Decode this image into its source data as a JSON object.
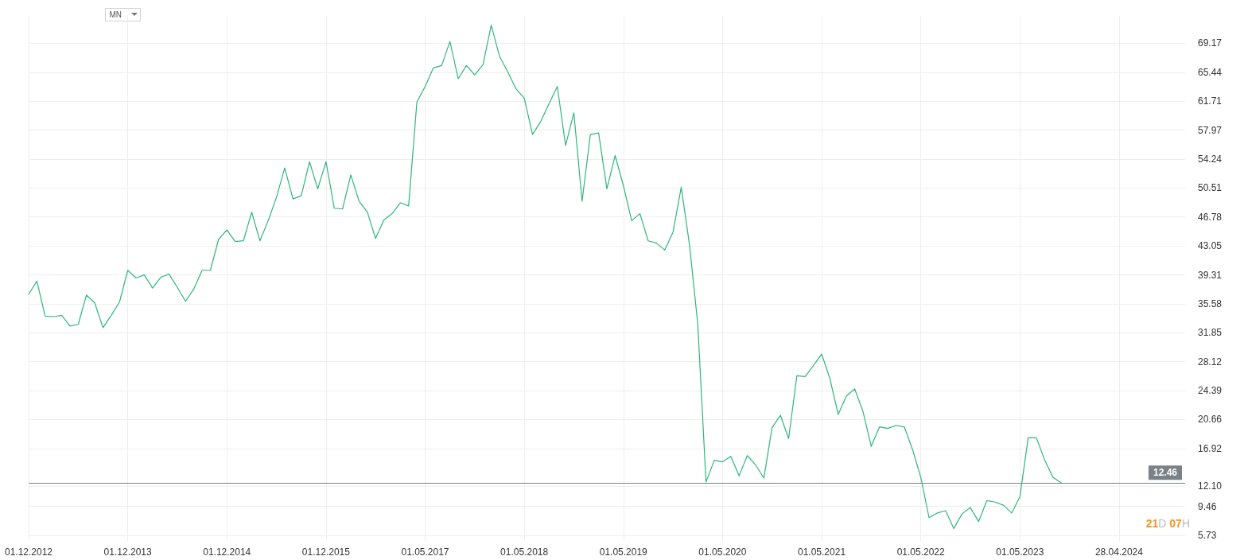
{
  "chart_data": {
    "type": "line",
    "categories": [
      "01.12.2012",
      null,
      null,
      null,
      null,
      null,
      null,
      null,
      null,
      null,
      null,
      null,
      "01.12.2013",
      null,
      null,
      null,
      null,
      null,
      null,
      null,
      null,
      null,
      null,
      null,
      "01.12.2014",
      null,
      null,
      null,
      null,
      null,
      null,
      null,
      null,
      null,
      null,
      null,
      "01.12.2015",
      null,
      null,
      null,
      null,
      null,
      null,
      null,
      null,
      null,
      null,
      null,
      "01.05.2017",
      null,
      null,
      null,
      null,
      null,
      null,
      null,
      null,
      null,
      null,
      null,
      "01.05.2018",
      null,
      null,
      null,
      null,
      null,
      null,
      null,
      null,
      null,
      null,
      null,
      "01.05.2019",
      null,
      null,
      null,
      null,
      null,
      null,
      null,
      null,
      null,
      null,
      null,
      "01.05.2020",
      null,
      null,
      null,
      null,
      null,
      null,
      null,
      null,
      null,
      null,
      null,
      "01.05.2021",
      null,
      null,
      null,
      null,
      null,
      null,
      null,
      null,
      null,
      null,
      null,
      "01.05.2022",
      null,
      null,
      null,
      null,
      null,
      null,
      null,
      null,
      null,
      null,
      null,
      "01.05.2023",
      null,
      null,
      null,
      null,
      null,
      null,
      null,
      null,
      null,
      null,
      null,
      "28.04.2024",
      null,
      null,
      null,
      null,
      null,
      null,
      null,
      null
    ],
    "series": [
      {
        "color": "#2eb67d",
        "values": [
          36.8,
          38.5,
          34.0,
          33.9,
          34.1,
          32.7,
          32.9,
          36.7,
          35.7,
          32.5,
          34.1,
          35.8,
          39.9,
          38.9,
          39.3,
          37.6,
          39.0,
          39.4,
          37.7,
          35.9,
          37.5,
          39.9,
          39.9,
          43.9,
          45.1,
          43.6,
          43.7,
          47.4,
          43.7,
          46.3,
          49.3,
          53.1,
          49.1,
          49.5,
          53.9,
          50.4,
          53.9,
          47.9,
          47.8,
          52.2,
          48.8,
          47.4,
          44.0,
          46.4,
          47.2,
          48.6,
          48.2,
          61.6,
          63.6,
          66.0,
          66.3,
          69.4,
          64.6,
          66.3,
          65.1,
          66.4,
          71.5,
          67.5,
          65.5,
          63.3,
          62.1,
          57.4,
          59.1,
          61.4,
          63.6,
          56.0,
          60.2,
          48.8,
          57.4,
          57.6,
          50.4,
          54.7,
          50.8,
          46.3,
          47.2,
          43.7,
          43.4,
          42.5,
          44.8,
          50.6,
          43.2,
          33.0,
          12.6,
          15.4,
          15.2,
          15.9,
          13.4,
          16.0,
          14.8,
          13.1,
          19.6,
          21.2,
          18.2,
          26.3,
          26.2,
          27.6,
          29.1,
          25.9,
          21.3,
          23.7,
          24.6,
          21.7,
          17.2,
          19.7,
          19.5,
          19.9,
          19.7,
          16.8,
          13.2,
          8.0,
          8.6,
          8.9,
          6.6,
          8.5,
          9.3,
          7.5,
          10.2,
          10.0,
          9.6,
          8.6,
          10.7,
          18.3,
          18.3,
          15.4,
          13.2,
          12.5,
          null,
          null,
          null,
          null,
          null,
          null,
          null,
          null,
          null,
          null,
          null,
          null,
          null,
          null,
          null
        ]
      }
    ],
    "ylim": [
      5.0,
      72.7
    ],
    "yticks": [
      5.73,
      9.46,
      {
        "value": 12.1,
        "label": "12.10"
      },
      16.92,
      20.66,
      24.39,
      28.12,
      31.85,
      35.58,
      39.31,
      43.05,
      46.78,
      50.51,
      54.24,
      57.97,
      61.71,
      65.44,
      69.17
    ],
    "ref_lines": [
      {
        "axis": "y",
        "value": 12.46,
        "label": "12.46",
        "color": "#7a8288",
        "line_style": "solid"
      }
    ],
    "annotations": [
      "MN",
      "21D 07H"
    ],
    "grid": true,
    "marker": "none",
    "line_style": "solid"
  }
}
